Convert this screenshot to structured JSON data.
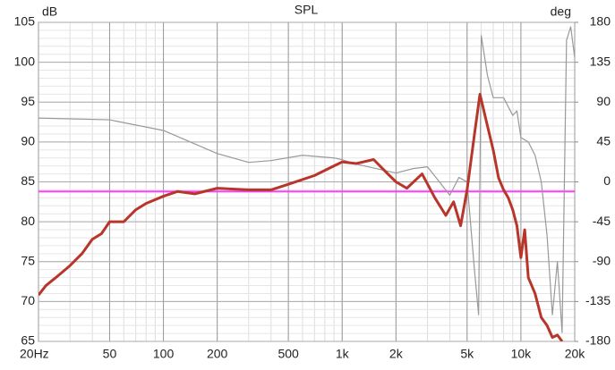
{
  "chart_data": {
    "type": "line",
    "title": "SPL",
    "ylabel": "dB",
    "y2label": "deg",
    "xscale": "log",
    "xlim": [
      20,
      20000
    ],
    "ylim": [
      65,
      105
    ],
    "y2lim": [
      -180,
      180
    ],
    "xticks": [
      {
        "value": 20,
        "label": "20Hz"
      },
      50,
      100,
      200,
      500,
      {
        "value": 1000,
        "label": "1k"
      },
      {
        "value": 2000,
        "label": "2k"
      },
      {
        "value": 5000,
        "label": "5k"
      },
      {
        "value": 10000,
        "label": "10k"
      },
      {
        "value": 20000,
        "label": "20k"
      }
    ],
    "yticks": [
      65,
      70,
      75,
      80,
      85,
      90,
      95,
      100,
      105
    ],
    "y2ticks": [
      -180,
      -135,
      -90,
      -45,
      0,
      45,
      90,
      135,
      180
    ],
    "grid": true,
    "series": [
      {
        "color": "#b8352a",
        "width": 3,
        "x": [
          20,
          22,
          25,
          30,
          35,
          40,
          45,
          50,
          60,
          70,
          80,
          100,
          120,
          150,
          200,
          300,
          400,
          500,
          700,
          900,
          1000,
          1200,
          1500,
          1800,
          2000,
          2300,
          2800,
          3300,
          3800,
          4200,
          4600,
          5000,
          5500,
          5900,
          6500,
          7000,
          7500,
          8000,
          8500,
          9000,
          9500,
          10000,
          10500,
          11000,
          12000,
          13000,
          14000,
          15000,
          16000,
          17000
        ],
        "values": [
          70.8,
          72,
          73,
          74.5,
          76,
          77.8,
          78.5,
          80,
          80,
          81.5,
          82.3,
          83.2,
          83.8,
          83.5,
          84.2,
          84,
          84,
          84.7,
          85.8,
          87,
          87.5,
          87.3,
          87.8,
          86,
          85,
          84.2,
          86,
          83,
          80.8,
          82.5,
          79.5,
          84,
          91,
          96,
          92,
          89,
          85.5,
          84,
          83,
          81.5,
          79.5,
          75.5,
          79,
          73,
          71,
          68,
          67,
          65.5,
          65.8,
          65
        ]
      },
      {
        "color": "#999999",
        "width": 1.2,
        "axis": "y2",
        "x": [
          20,
          50,
          100,
          200,
          300,
          400,
          600,
          900,
          1000,
          1200,
          2000,
          2500,
          3000,
          3500,
          4000,
          4500,
          5000,
          5500,
          5800,
          6000,
          6500,
          7000,
          8000,
          9000,
          9500,
          10000,
          11000,
          12000,
          13000,
          14000,
          15000,
          16000,
          17000,
          18000,
          19000,
          20000
        ],
        "values": [
          72,
          70,
          58,
          32,
          22,
          24,
          30,
          27,
          25,
          20,
          10,
          15,
          17,
          0,
          -15,
          5,
          0,
          -100,
          -150,
          165,
          120,
          95,
          95,
          75,
          80,
          50,
          45,
          30,
          0,
          -60,
          -150,
          -90,
          -170,
          160,
          175,
          140
        ]
      }
    ],
    "reference_line": {
      "value": 83.8,
      "color": "#ff3cff"
    }
  }
}
